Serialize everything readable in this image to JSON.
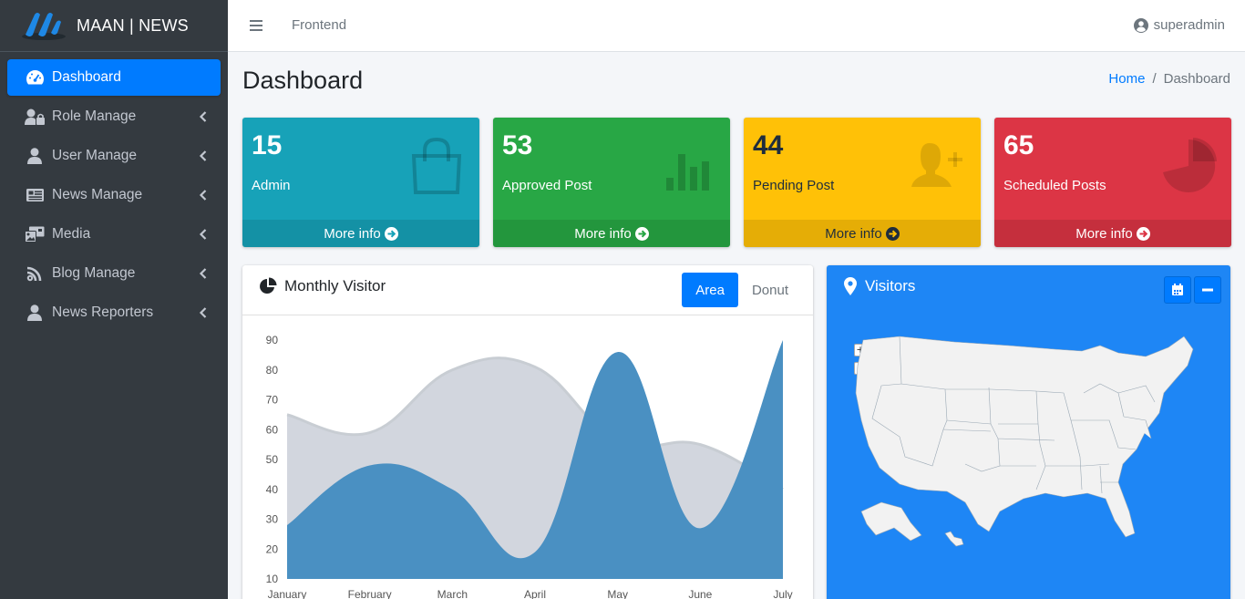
{
  "brand": {
    "name": "MAAN | NEWS"
  },
  "sidebar": {
    "items": [
      {
        "label": "Dashboard",
        "icon": "tachometer-icon",
        "active": true
      },
      {
        "label": "Role Manage",
        "icon": "user-lock-icon"
      },
      {
        "label": "User Manage",
        "icon": "user-icon"
      },
      {
        "label": "News Manage",
        "icon": "newspaper-icon"
      },
      {
        "label": "Media",
        "icon": "photo-video-icon"
      },
      {
        "label": "Blog Manage",
        "icon": "blog-icon"
      },
      {
        "label": "News Reporters",
        "icon": "user-icon"
      }
    ]
  },
  "topbar": {
    "link": "Frontend",
    "user": "superadmin"
  },
  "header": {
    "title": "Dashboard",
    "breadcrumb_home": "Home",
    "breadcrumb_sep": "/",
    "breadcrumb_current": "Dashboard"
  },
  "stats": [
    {
      "value": "15",
      "label": "Admin",
      "footer": "More info",
      "icon": "shopping-bag-icon",
      "color": "#17a2b8"
    },
    {
      "value": "53",
      "label": "Approved Post",
      "footer": "More info",
      "icon": "bar-chart-icon",
      "color": "#28a745"
    },
    {
      "value": "44",
      "label": "Pending Post",
      "footer": "More info",
      "icon": "user-plus-icon",
      "color": "#ffc107"
    },
    {
      "value": "65",
      "label": "Scheduled Posts",
      "footer": "More info",
      "icon": "pie-chart-icon",
      "color": "#dc3545"
    }
  ],
  "monthly": {
    "title": "Monthly Visitor",
    "tab_area": "Area",
    "tab_donut": "Donut"
  },
  "visitors": {
    "title": "Visitors",
    "zoom_in": "+",
    "zoom_out": "−"
  },
  "chart_data": {
    "type": "area",
    "x": [
      "January",
      "February",
      "March",
      "April",
      "May",
      "June",
      "July"
    ],
    "yticks": [
      10,
      20,
      30,
      40,
      50,
      60,
      70,
      80,
      90
    ],
    "ylim": [
      10,
      90
    ],
    "series": [
      {
        "values": [
          65,
          59,
          80,
          81,
          56,
          55,
          40
        ],
        "color": "#d2d6de"
      },
      {
        "values": [
          28,
          48,
          40,
          19,
          86,
          27,
          90
        ],
        "color": "#4a90c2"
      }
    ]
  }
}
